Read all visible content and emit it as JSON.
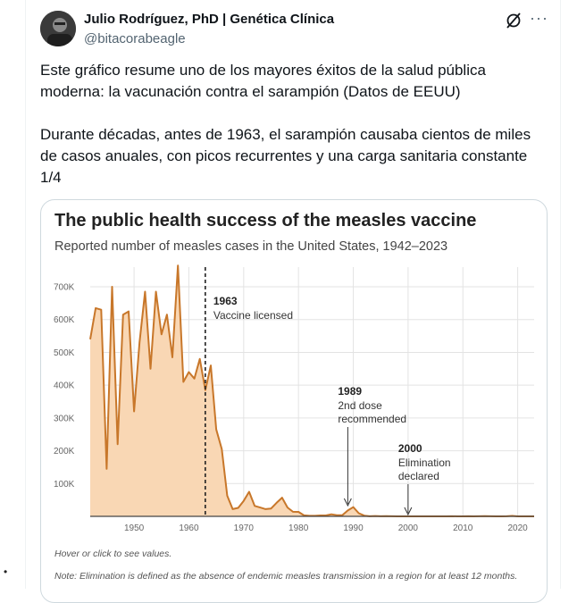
{
  "tweet": {
    "author_name": "Julio Rodríguez, PhD | Genética Clínica",
    "author_handle": "@bitacorabeagle",
    "paragraph_1": "Este gráfico resume uno de los mayores éxitos de la salud pública moderna: la vacunación contra el sarampión (Datos de EEUU)",
    "paragraph_2": "Durante décadas, antes de 1963, el sarampión causaba cientos de miles de casos anuales, con picos recurrentes y una carga sanitaria constante 1/4"
  },
  "card": {
    "title": "The public health success of the measles vaccine",
    "subtitle": "Reported number of measles cases in the United States, 1942–2023",
    "hover_hint": "Hover or click to see values.",
    "note": "Note: Elimination is defined as the absence of endemic measles transmission in a region for at least 12 months."
  },
  "colors": {
    "area_fill": "#f9d7b4",
    "line": "#c8772a",
    "grid": "#e3e3e3"
  },
  "icons": {
    "grok": "grok-icon",
    "more": "more-icon"
  },
  "page_marker": "•",
  "chart_data": {
    "type": "area",
    "title": "The public health success of the measles vaccine",
    "subtitle": "Reported number of measles cases in the United States, 1942–2023",
    "x_ticks": [
      "1950",
      "1960",
      "1970",
      "1980",
      "1990",
      "2000",
      "2010",
      "2020"
    ],
    "y_ticks": [
      "100K",
      "200K",
      "300K",
      "400K",
      "500K",
      "600K",
      "700K"
    ],
    "xlim": [
      1942,
      2023
    ],
    "ylim": [
      0,
      760000
    ],
    "x": [
      1942,
      1943,
      1944,
      1945,
      1946,
      1947,
      1948,
      1949,
      1950,
      1951,
      1952,
      1953,
      1954,
      1955,
      1956,
      1957,
      1958,
      1959,
      1960,
      1961,
      1962,
      1963,
      1964,
      1965,
      1966,
      1967,
      1968,
      1969,
      1970,
      1971,
      1972,
      1973,
      1974,
      1975,
      1976,
      1977,
      1978,
      1979,
      1980,
      1981,
      1982,
      1983,
      1984,
      1985,
      1986,
      1987,
      1988,
      1989,
      1990,
      1991,
      1992,
      1993,
      1994,
      1995,
      1996,
      1997,
      1998,
      1999,
      2000,
      2001,
      2002,
      2003,
      2004,
      2005,
      2006,
      2007,
      2008,
      2009,
      2010,
      2011,
      2012,
      2013,
      2014,
      2015,
      2016,
      2017,
      2018,
      2019,
      2020,
      2021,
      2022,
      2023
    ],
    "values": [
      540000,
      635000,
      630000,
      145000,
      700000,
      220000,
      615000,
      625000,
      320000,
      530000,
      685000,
      450000,
      685000,
      555000,
      615000,
      485000,
      765000,
      410000,
      440000,
      420000,
      480000,
      385000,
      460000,
      265000,
      205000,
      63000,
      22000,
      26000,
      47000,
      75000,
      32000,
      27000,
      22000,
      24000,
      41000,
      57000,
      27000,
      14000,
      13500,
      3100,
      1700,
      1500,
      2600,
      2800,
      6300,
      3600,
      3400,
      18000,
      28000,
      9600,
      2200,
      300,
      960,
      300,
      500,
      140,
      100,
      100,
      86,
      116,
      44,
      56,
      37,
      66,
      55,
      43,
      140,
      71,
      63,
      220,
      55,
      187,
      667,
      188,
      86,
      120,
      375,
      1282,
      13,
      49,
      121,
      59
    ],
    "annotations": [
      {
        "year": 1963,
        "label": "1963",
        "text": [
          "Vaccine licensed"
        ]
      },
      {
        "year": 1989,
        "label": "1989",
        "text": [
          "2nd dose",
          "recommended"
        ]
      },
      {
        "year": 2000,
        "label": "2000",
        "text": [
          "Elimination",
          "declared"
        ]
      }
    ]
  }
}
